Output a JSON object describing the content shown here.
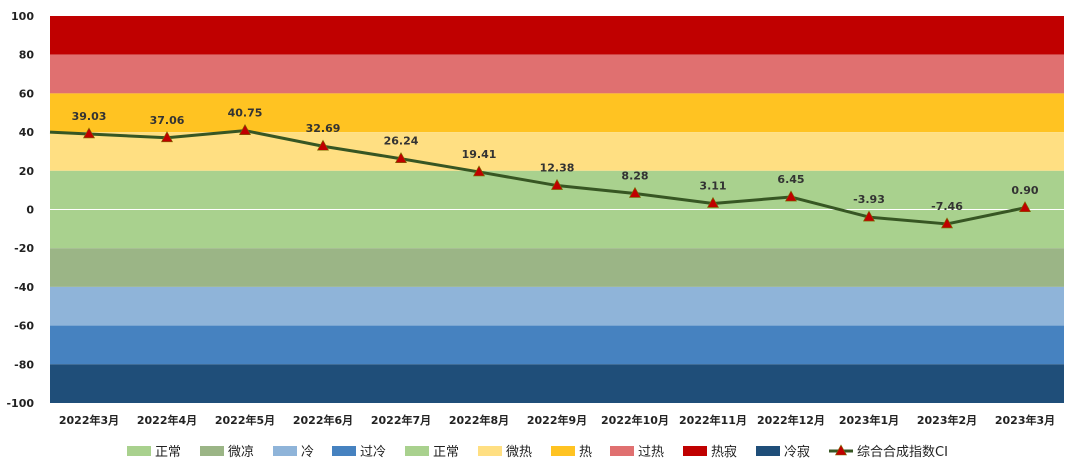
{
  "chart_data": {
    "type": "line",
    "categories": [
      "2022年3月",
      "2022年4月",
      "2022年5月",
      "2022年6月",
      "2022年7月",
      "2022年8月",
      "2022年9月",
      "2022年10月",
      "2022年11月",
      "2022年12月",
      "2023年1月",
      "2023年2月",
      "2023年3月"
    ],
    "series": [
      {
        "name": "综合合成指数CI",
        "color": "#375623",
        "marker_color": "#c00000",
        "values": [
          39.03,
          37.06,
          40.75,
          32.69,
          26.24,
          19.41,
          12.38,
          8.28,
          3.11,
          6.45,
          -3.93,
          -7.46,
          0.9
        ],
        "labels": [
          "39.03",
          "37.06",
          "40.75",
          "32.69",
          "26.24",
          "19.41",
          "12.38",
          "8.28",
          "3.11",
          "6.45",
          "-3.93",
          "-7.46",
          "0.90"
        ]
      }
    ],
    "ylim": [
      -100,
      100
    ],
    "yticks": [
      "100",
      "80",
      "60",
      "40",
      "20",
      "0",
      "-20",
      "-40",
      "-60",
      "-80",
      "-100"
    ],
    "bands": [
      {
        "name": "热寂",
        "from": 80,
        "to": 100,
        "color": "#c00000"
      },
      {
        "name": "过热",
        "from": 60,
        "to": 80,
        "color": "#e07070"
      },
      {
        "name": "热",
        "from": 40,
        "to": 60,
        "color": "#ffc322"
      },
      {
        "name": "微热",
        "from": 20,
        "to": 40,
        "color": "#ffdf82"
      },
      {
        "name": "正常",
        "from": 0,
        "to": 20,
        "color": "#a9d18e"
      },
      {
        "name": "正常",
        "from": -20,
        "to": 0,
        "color": "#a9d18e"
      },
      {
        "name": "微凉",
        "from": -40,
        "to": -20,
        "color": "#9bb586"
      },
      {
        "name": "冷",
        "from": -60,
        "to": -40,
        "color": "#8fb4d9"
      },
      {
        "name": "过冷",
        "from": -80,
        "to": -60,
        "color": "#4682c0"
      },
      {
        "name": "冷寂",
        "from": -100,
        "to": -80,
        "color": "#1f4e79"
      }
    ],
    "legend": [
      {
        "label": "正常",
        "color": "#a9d18e"
      },
      {
        "label": "微凉",
        "color": "#9bb586"
      },
      {
        "label": "冷",
        "color": "#8fb4d9"
      },
      {
        "label": "过冷",
        "color": "#4682c0"
      },
      {
        "label": "正常",
        "color": "#a9d18e"
      },
      {
        "label": "微热",
        "color": "#ffdf82"
      },
      {
        "label": "热",
        "color": "#ffc322"
      },
      {
        "label": "过热",
        "color": "#e07070"
      },
      {
        "label": "热寂",
        "color": "#c00000"
      },
      {
        "label": "冷寂",
        "color": "#1f4e79"
      },
      {
        "label": "综合合成指数CI",
        "color": "#375623",
        "marker_color": "#c00000",
        "is_line": true
      }
    ],
    "legend_position": "bottom",
    "grid": false
  }
}
